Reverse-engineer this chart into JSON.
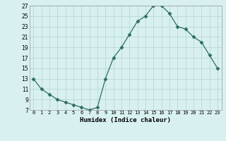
{
  "x": [
    0,
    1,
    2,
    3,
    4,
    5,
    6,
    7,
    8,
    9,
    10,
    11,
    12,
    13,
    14,
    15,
    16,
    17,
    18,
    19,
    20,
    21,
    22,
    23
  ],
  "y": [
    13,
    11,
    10,
    9,
    8.5,
    8,
    7.5,
    7,
    7.5,
    13,
    17,
    19,
    21.5,
    24,
    25,
    27,
    27,
    25.5,
    23,
    22.5,
    21,
    20,
    17.5,
    15
  ],
  "line_color": "#2e6e5e",
  "marker": "D",
  "marker_size": 2.5,
  "bg_color": "#d8f0f0",
  "grid_color": "#b8d8d8",
  "xlabel": "Humidex (Indice chaleur)",
  "xlim": [
    -0.5,
    23.5
  ],
  "ylim": [
    7,
    27
  ],
  "yticks": [
    7,
    9,
    11,
    13,
    15,
    17,
    19,
    21,
    23,
    25,
    27
  ],
  "xtick_labels": [
    "0",
    "1",
    "2",
    "3",
    "4",
    "5",
    "6",
    "7",
    "8",
    "9",
    "10",
    "11",
    "12",
    "13",
    "14",
    "15",
    "16",
    "17",
    "18",
    "19",
    "20",
    "21",
    "22",
    "23"
  ]
}
